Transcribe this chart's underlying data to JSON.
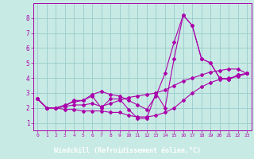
{
  "xlabel": "Windchill (Refroidissement éolien,°C)",
  "xlim": [
    -0.5,
    23.5
  ],
  "ylim": [
    0.5,
    9.0
  ],
  "yticks": [
    1,
    2,
    3,
    4,
    5,
    6,
    7,
    8
  ],
  "xticks": [
    0,
    1,
    2,
    3,
    4,
    5,
    6,
    7,
    8,
    9,
    10,
    11,
    12,
    13,
    14,
    15,
    16,
    17,
    18,
    19,
    20,
    21,
    22,
    23
  ],
  "bg_color": "#c8eae4",
  "plot_bg": "#c8eae4",
  "line_color": "#aa00aa",
  "grid_color": "#99cccc",
  "xlabel_bg": "#7700aa",
  "series": [
    [
      2.6,
      2.0,
      2.0,
      2.1,
      2.5,
      2.5,
      2.8,
      2.0,
      2.6,
      2.6,
      1.9,
      1.3,
      1.3,
      3.0,
      2.0,
      5.3,
      8.2,
      7.5,
      5.3,
      5.0,
      4.0,
      3.9,
      4.2,
      4.3
    ],
    [
      2.6,
      2.0,
      2.0,
      2.1,
      2.2,
      2.2,
      2.3,
      2.1,
      2.3,
      2.5,
      2.7,
      2.8,
      2.9,
      3.0,
      3.2,
      3.5,
      3.8,
      4.0,
      4.2,
      4.4,
      4.5,
      4.6,
      4.6,
      4.3
    ],
    [
      2.6,
      2.0,
      2.0,
      1.9,
      1.9,
      1.8,
      1.8,
      1.8,
      1.7,
      1.7,
      1.5,
      1.4,
      1.4,
      1.5,
      1.7,
      2.0,
      2.5,
      3.0,
      3.4,
      3.7,
      3.9,
      4.0,
      4.1,
      4.3
    ],
    [
      2.6,
      2.0,
      2.0,
      2.2,
      2.4,
      2.5,
      2.9,
      3.1,
      2.9,
      2.8,
      2.5,
      2.2,
      1.9,
      2.8,
      4.3,
      6.4,
      8.2,
      7.5,
      5.3,
      5.0,
      4.0,
      3.9,
      4.2,
      4.3
    ]
  ]
}
